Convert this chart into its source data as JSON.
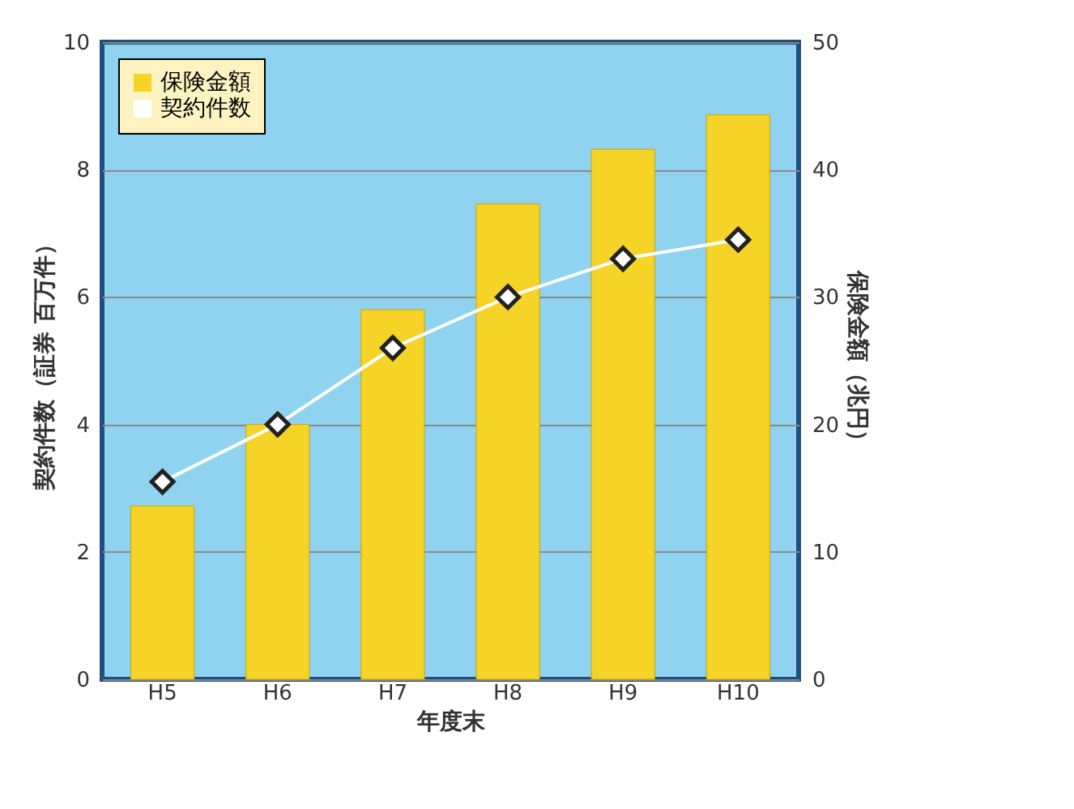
{
  "chart_data": {
    "type": "bar",
    "xlabel": "年度末",
    "ylabel": "契約件数（証券 百万件）",
    "y2label": "保険金額（兆円）",
    "categories": [
      "H5",
      "H6",
      "H7",
      "H8",
      "H9",
      "H10"
    ],
    "series": [
      {
        "name": "保険金額",
        "axis": "y2",
        "color": "#f5d327",
        "values": [
          13.6,
          20.0,
          29.0,
          37.3,
          41.6,
          44.3
        ]
      },
      {
        "name": "契約件数",
        "type": "line",
        "color": "#ffffff",
        "marker": "diamond",
        "values": [
          3.1,
          4.0,
          5.2,
          6.0,
          6.6,
          6.9
        ]
      }
    ],
    "ylim": [
      0,
      10
    ],
    "yticks": [
      0,
      2,
      4,
      6,
      8,
      10
    ],
    "y2lim": [
      0,
      50
    ],
    "y2ticks": [
      0,
      10,
      20,
      30,
      40,
      50
    ],
    "grid": "y",
    "legend": "top left"
  }
}
